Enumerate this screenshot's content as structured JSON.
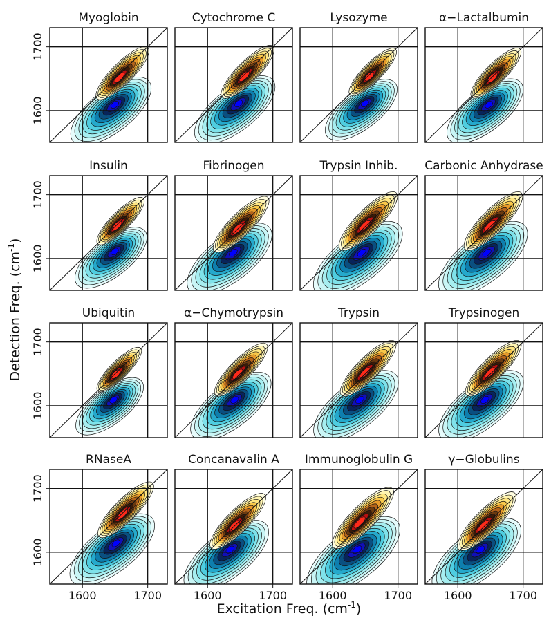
{
  "chart_data": {
    "type": "contour",
    "xlabel": "Excitation Freq. (cm",
    "ylabel": "Detection Freq. (cm",
    "label_sup": "-1",
    "label_suffix": ")",
    "xlim": [
      1550,
      1730
    ],
    "ylim": [
      1550,
      1730
    ],
    "xticks": [
      1600,
      1700
    ],
    "yticks": [
      1600,
      1700
    ],
    "panels": [
      {
        "title": "Myoglobin",
        "pos_center": [
          1655,
          1650
        ],
        "neg_center": [
          1650,
          1610
        ],
        "extent": 0.95
      },
      {
        "title": "Cytochrome C",
        "pos_center": [
          1655,
          1652
        ],
        "neg_center": [
          1648,
          1612
        ],
        "extent": 0.95
      },
      {
        "title": "Lysozyme",
        "pos_center": [
          1655,
          1652
        ],
        "neg_center": [
          1650,
          1612
        ],
        "extent": 0.85
      },
      {
        "title": "α−Lactalbumin",
        "pos_center": [
          1652,
          1650
        ],
        "neg_center": [
          1648,
          1610
        ],
        "extent": 0.9
      },
      {
        "title": "Insulin",
        "pos_center": [
          1652,
          1650
        ],
        "neg_center": [
          1650,
          1612
        ],
        "extent": 0.85
      },
      {
        "title": "Fibrinogen",
        "pos_center": [
          1645,
          1645
        ],
        "neg_center": [
          1640,
          1610
        ],
        "extent": 1.0
      },
      {
        "title": "Trypsin Inhib.",
        "pos_center": [
          1648,
          1650
        ],
        "neg_center": [
          1645,
          1610
        ],
        "extent": 1.05
      },
      {
        "title": "Carbonic Anhydrase",
        "pos_center": [
          1648,
          1650
        ],
        "neg_center": [
          1645,
          1610
        ],
        "extent": 1.05
      },
      {
        "title": "Ubiquitin",
        "pos_center": [
          1650,
          1648
        ],
        "neg_center": [
          1648,
          1610
        ],
        "extent": 0.8
      },
      {
        "title": "α−Chymotrypsin",
        "pos_center": [
          1645,
          1648
        ],
        "neg_center": [
          1642,
          1610
        ],
        "extent": 0.95
      },
      {
        "title": "Trypsin",
        "pos_center": [
          1648,
          1650
        ],
        "neg_center": [
          1642,
          1610
        ],
        "extent": 1.0
      },
      {
        "title": "Trypsinogen",
        "pos_center": [
          1648,
          1650
        ],
        "neg_center": [
          1642,
          1610
        ],
        "extent": 1.0
      },
      {
        "title": "RNaseA",
        "pos_center": [
          1660,
          1658
        ],
        "neg_center": [
          1652,
          1615
        ],
        "extent": 1.0
      },
      {
        "title": "Concanavalin A",
        "pos_center": [
          1640,
          1640
        ],
        "neg_center": [
          1635,
          1605
        ],
        "extent": 1.0
      },
      {
        "title": "Immunoglobulin G",
        "pos_center": [
          1640,
          1645
        ],
        "neg_center": [
          1638,
          1605
        ],
        "extent": 1.1
      },
      {
        "title": "γ−Globulins",
        "pos_center": [
          1638,
          1640
        ],
        "neg_center": [
          1635,
          1605
        ],
        "extent": 1.05
      }
    ]
  },
  "colors": {
    "positive": [
      "#fffde0",
      "#fff4b0",
      "#ffe680",
      "#f9c84a",
      "#e89a2a",
      "#b5641a",
      "#6b3a10",
      "#3a1a08",
      "#b81010",
      "#ff2a1a"
    ],
    "negative": [
      "#e6fbfb",
      "#c8f5f5",
      "#a6eef0",
      "#7fe2ea",
      "#4fcde0",
      "#25a9cc",
      "#0e7fae",
      "#0a4f80",
      "#08245a",
      "#1010b8",
      "#0000ff"
    ],
    "line": "#111111"
  }
}
